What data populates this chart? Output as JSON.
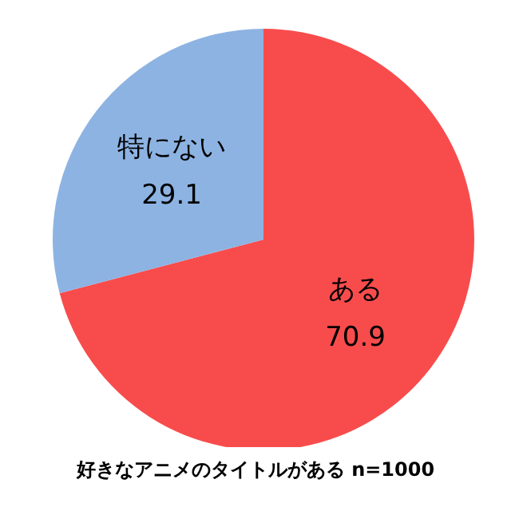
{
  "chart_data": {
    "type": "pie",
    "title": "好きなアニメのタイトルがある n=1000",
    "categories": [
      "ある",
      "特にない"
    ],
    "values": [
      70.9,
      29.1
    ],
    "colors": [
      "#f84c4c",
      "#8db3e2"
    ],
    "data_labels": true,
    "legend": false
  }
}
